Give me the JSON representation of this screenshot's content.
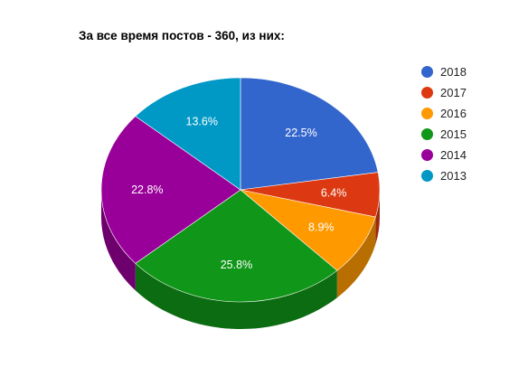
{
  "chart_data": {
    "type": "pie",
    "title": "За все время постов - 360, из них:",
    "legend_position": "right",
    "three_d": true,
    "series": [
      {
        "name": "2018",
        "value": 22.5,
        "label": "22.5%",
        "color": "#3366cc"
      },
      {
        "name": "2017",
        "value": 6.4,
        "label": "6.4%",
        "color": "#dc3912"
      },
      {
        "name": "2016",
        "value": 8.9,
        "label": "8.9%",
        "color": "#ff9900"
      },
      {
        "name": "2015",
        "value": 25.8,
        "label": "25.8%",
        "color": "#109618"
      },
      {
        "name": "2014",
        "value": 22.8,
        "label": "22.8%",
        "color": "#990099"
      },
      {
        "name": "2013",
        "value": 13.6,
        "label": "13.6%",
        "color": "#0099c6"
      }
    ]
  }
}
